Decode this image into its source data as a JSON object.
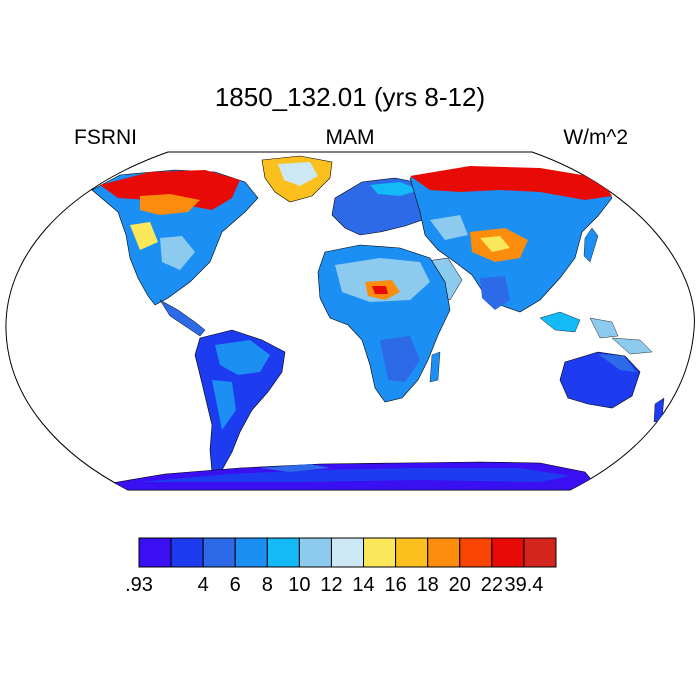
{
  "header": {
    "title": "1850_132.01 (yrs 8-12)",
    "left_label": "FSRNI",
    "center_label": "MAM",
    "right_label": "W/m^2"
  },
  "colorbar": {
    "colors": [
      "#3a10f2",
      "#1e3cef",
      "#2d6ae8",
      "#1b8ff4",
      "#13baf7",
      "#8ccaee",
      "#cde8f5",
      "#fbe85a",
      "#fbc01d",
      "#fb8c0c",
      "#f94504",
      "#e80b05",
      "#d3241e"
    ],
    "labels": [
      ".93",
      "4",
      "6",
      "8",
      "10",
      "12",
      "14",
      "16",
      "18",
      "20",
      "22",
      "39.4"
    ]
  },
  "regions": {
    "greenland": "greenland-landmass",
    "antarctica": "antarctica-landmass"
  }
}
